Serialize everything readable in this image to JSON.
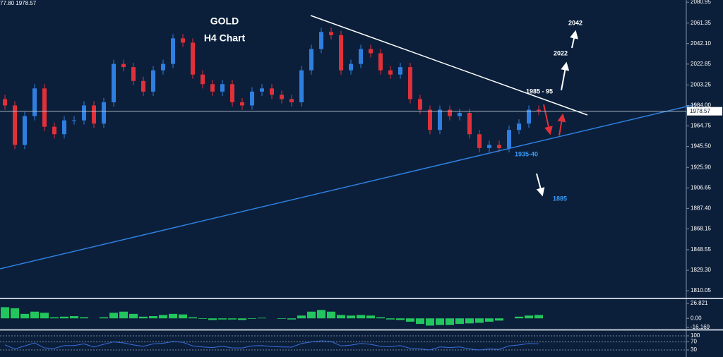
{
  "chart_data": [
    {
      "type": "candlestick",
      "title": "GOLD",
      "subtitle": "H4 Chart",
      "header": "77.80 1978.57",
      "up_color": "#2f7fe0",
      "down_color": "#e0303a",
      "last_price": 1978.57,
      "annotations": [
        "2042",
        "2022",
        "1985 - 95",
        "1935-40",
        "1885"
      ],
      "open": [
        1990,
        1984,
        1947,
        1974,
        2000,
        1964,
        1957,
        1970,
        1970,
        1984,
        1967,
        1987,
        2023,
        2020,
        2007,
        1997,
        2017,
        2023,
        2047,
        2043,
        2013,
        2004,
        1997,
        2004,
        1987,
        1984,
        1997,
        2000,
        1994,
        1990,
        1987,
        2017,
        2037,
        2053,
        2050,
        2017,
        2023,
        2037,
        2033,
        2017,
        2013,
        2020,
        1990,
        1980,
        1961,
        1980,
        1974,
        1977,
        1957,
        1944,
        1947,
        1944,
        1961,
        1967,
        1980
      ],
      "high": [
        1994,
        1988,
        1978,
        2004,
        2004,
        1968,
        1974,
        1974,
        1988,
        1988,
        1991,
        2027,
        2027,
        2024,
        2011,
        2021,
        2027,
        2051,
        2051,
        2047,
        2017,
        2008,
        2008,
        2008,
        1991,
        2001,
        2004,
        2004,
        1998,
        1994,
        2021,
        2041,
        2057,
        2057,
        2054,
        2027,
        2041,
        2041,
        2037,
        2021,
        2024,
        2024,
        1994,
        1984,
        1984,
        1984,
        1981,
        1981,
        1961,
        1951,
        1951,
        1965,
        1971,
        1984,
        1984
      ],
      "low": [
        1980,
        1943,
        1943,
        1970,
        1960,
        1953,
        1953,
        1966,
        1966,
        1963,
        1963,
        1983,
        2016,
        2003,
        1993,
        1993,
        2013,
        2019,
        2039,
        2009,
        2000,
        1993,
        1993,
        1983,
        1980,
        1980,
        1993,
        1990,
        1986,
        1983,
        1983,
        2013,
        2033,
        2046,
        2013,
        2013,
        2019,
        2029,
        2013,
        2009,
        2009,
        1986,
        1976,
        1957,
        1957,
        1970,
        1970,
        1953,
        1940,
        1940,
        1940,
        1940,
        1957,
        1963,
        1975
      ],
      "close": [
        1984,
        1947,
        1974,
        2000,
        1964,
        1957,
        1970,
        1970,
        1984,
        1967,
        1987,
        2023,
        2020,
        2007,
        1997,
        2017,
        2023,
        2047,
        2043,
        2013,
        2004,
        1997,
        2004,
        1987,
        1984,
        1997,
        2000,
        1994,
        1990,
        1987,
        2017,
        2037,
        2053,
        2050,
        2017,
        2023,
        2037,
        2033,
        2017,
        2013,
        2020,
        1990,
        1980,
        1961,
        1980,
        1974,
        1977,
        1957,
        1944,
        1947,
        1944,
        1961,
        1967,
        1980,
        1979
      ],
      "ylim": [
        1803.5,
        2083
      ],
      "yticks": [
        2080.95,
        2061.35,
        {
          "value": 2042.1,
          "label": "2042.10"
        },
        2022.85,
        2003.25,
        {
          "value": 1984,
          "label": "1984.00"
        },
        1964.75,
        {
          "value": 1945.5,
          "label": "1945.50"
        },
        {
          "value": 1925.9,
          "label": "1925.90"
        },
        1906.65,
        {
          "value": 1887.4,
          "label": "1887.40"
        },
        1868.15,
        1848.55,
        {
          "value": 1829.3,
          "label": "1829.30"
        },
        1810.05
      ],
      "grid": false
    },
    {
      "type": "bar",
      "color": "#22c55e",
      "values": [
        20,
        18,
        8,
        12,
        10,
        2,
        3,
        4,
        2,
        0,
        2,
        10,
        12,
        8,
        3,
        4,
        6,
        8,
        7,
        2,
        -1,
        -3,
        -2,
        -2,
        -3,
        -1,
        1,
        0,
        -1,
        -2,
        5,
        12,
        15,
        12,
        6,
        5,
        6,
        5,
        2,
        -2,
        -3,
        -6,
        -10,
        -13,
        -12,
        -12,
        -10,
        -9,
        -8,
        -6,
        -4,
        0,
        3,
        5,
        6
      ],
      "ylim": [
        -18.7,
        34.4
      ],
      "yticks": [
        26.821,
        {
          "value": 0,
          "label": "0.00"
        },
        -16.169
      ],
      "grid": false
    },
    {
      "type": "line",
      "color": "#3b6fe0",
      "values": [
        55,
        35,
        50,
        65,
        40,
        38,
        52,
        52,
        60,
        45,
        58,
        70,
        65,
        55,
        48,
        60,
        63,
        72,
        68,
        50,
        45,
        42,
        48,
        40,
        40,
        50,
        52,
        47,
        45,
        44,
        62,
        70,
        75,
        72,
        50,
        54,
        62,
        58,
        48,
        46,
        52,
        38,
        35,
        30,
        45,
        42,
        45,
        35,
        30,
        35,
        33,
        50,
        55,
        62,
        60
      ],
      "ylim": [
        -5,
        124.5
      ],
      "yticks": [
        100,
        70,
        30
      ],
      "grid": true
    }
  ]
}
